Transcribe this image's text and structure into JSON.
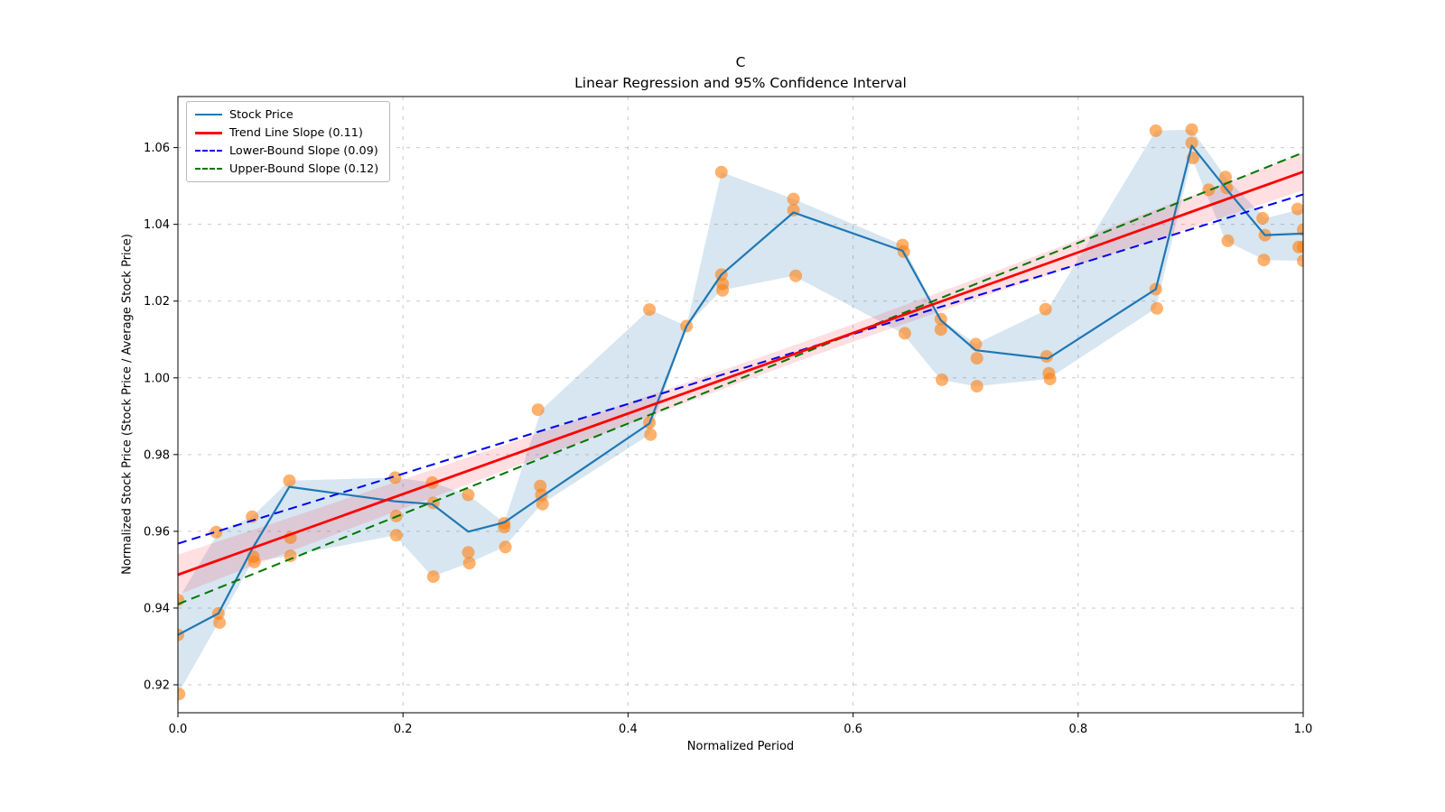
{
  "title": "C",
  "subtitle": "Linear Regression and 95% Confidence Interval",
  "xlabel": "Normalized Period",
  "ylabel": "Normalized Stock Price (Stock Price / Average Stock Price)",
  "legend": [
    {
      "label": "Stock Price",
      "color": "#1f77b4",
      "style": "solid",
      "width": 2
    },
    {
      "label": "Trend Line Slope (0.11)",
      "color": "#ff0000",
      "style": "solid",
      "width": 3
    },
    {
      "label": "Lower-Bound Slope (0.09)",
      "color": "#0000ee",
      "style": "dashed",
      "width": 2
    },
    {
      "label": "Upper-Bound Slope (0.12)",
      "color": "#007700",
      "style": "dashed",
      "width": 2
    }
  ],
  "chart_data": {
    "type": "line",
    "title": "C",
    "subtitle": "Linear Regression and 95% Confidence Interval",
    "xlabel": "Normalized Period",
    "ylabel": "Normalized Stock Price (Stock Price / Average Stock Price)",
    "xlim": [
      0,
      1
    ],
    "ylim": [
      0.9127,
      1.0733
    ],
    "x_ticks": [
      "0.0",
      "0.2",
      "0.4",
      "0.6",
      "0.8",
      "1.0"
    ],
    "x_tick_values": [
      0.0,
      0.2,
      0.4,
      0.6,
      0.8,
      1.0
    ],
    "y_ticks": [
      "0.92",
      "0.94",
      "0.96",
      "0.98",
      "1.00",
      "1.02",
      "1.04",
      "1.06"
    ],
    "y_tick_values": [
      0.92,
      0.94,
      0.96,
      0.98,
      1.0,
      1.02,
      1.04,
      1.06
    ],
    "grid": true,
    "legend_position": "upper left",
    "colors": {
      "stock_line": "#1f77b4",
      "stock_band": "rgba(31,119,180,0.18)",
      "scatter": "#ff7f0e",
      "scatter_alpha": 0.6,
      "trend": "#ff0000",
      "trend_band": "rgba(255,10,30,0.13)",
      "lower_bound": "#0000ee",
      "upper_bound": "#007700",
      "grid_color": "#c9c9c9"
    },
    "stock_price_line": {
      "x": [
        0.0,
        0.036,
        0.066,
        0.099,
        0.193,
        0.226,
        0.258,
        0.29,
        0.323,
        0.419,
        0.452,
        0.483,
        0.547,
        0.644,
        0.678,
        0.709,
        0.773,
        0.869,
        0.901,
        0.931,
        0.966,
        1.0
      ],
      "y": [
        0.933,
        0.9386,
        0.9554,
        0.9716,
        0.9678,
        0.9671,
        0.9599,
        0.9623,
        0.969,
        0.9881,
        1.0135,
        1.0269,
        1.0431,
        1.0331,
        1.015,
        1.0072,
        1.005,
        1.0231,
        1.0605,
        1.0495,
        1.0372,
        1.0376
      ]
    },
    "stock_band": {
      "x": [
        0.0,
        0.036,
        0.066,
        0.099,
        0.193,
        0.226,
        0.258,
        0.29,
        0.323,
        0.419,
        0.452,
        0.483,
        0.547,
        0.644,
        0.678,
        0.709,
        0.773,
        0.869,
        0.901,
        0.931,
        0.966,
        1.0
      ],
      "low": [
        0.9176,
        0.9362,
        0.952,
        0.9536,
        0.959,
        0.9482,
        0.9517,
        0.9559,
        0.9671,
        0.9852,
        1.0135,
        1.0228,
        1.0266,
        1.0116,
        0.9995,
        0.9978,
        0.9997,
        1.0181,
        1.0573,
        1.0357,
        1.0307,
        1.0305
      ],
      "high": [
        0.9421,
        0.9598,
        0.9638,
        0.9732,
        0.974,
        0.9727,
        0.9695,
        0.9623,
        0.9917,
        1.0178,
        1.0135,
        1.0536,
        1.0466,
        1.0346,
        1.0153,
        1.0088,
        1.0179,
        1.0644,
        1.0647,
        1.0523,
        1.0416,
        1.044
      ]
    },
    "scatter": [
      [
        0.0,
        0.9421
      ],
      [
        0.0,
        0.933
      ],
      [
        0.001,
        0.9176
      ],
      [
        0.034,
        0.9598
      ],
      [
        0.036,
        0.9386
      ],
      [
        0.037,
        0.9362
      ],
      [
        0.066,
        0.9638
      ],
      [
        0.067,
        0.9534
      ],
      [
        0.068,
        0.952
      ],
      [
        0.099,
        0.9732
      ],
      [
        0.1,
        0.9583
      ],
      [
        0.1,
        0.9536
      ],
      [
        0.193,
        0.974
      ],
      [
        0.194,
        0.964
      ],
      [
        0.194,
        0.959
      ],
      [
        0.226,
        0.9727
      ],
      [
        0.227,
        0.9674
      ],
      [
        0.227,
        0.9482
      ],
      [
        0.258,
        0.9695
      ],
      [
        0.258,
        0.9545
      ],
      [
        0.259,
        0.9517
      ],
      [
        0.29,
        0.9621
      ],
      [
        0.29,
        0.9611
      ],
      [
        0.291,
        0.9559
      ],
      [
        0.32,
        0.9917
      ],
      [
        0.322,
        0.9718
      ],
      [
        0.323,
        0.9695
      ],
      [
        0.324,
        0.9671
      ],
      [
        0.419,
        1.0178
      ],
      [
        0.419,
        0.9883
      ],
      [
        0.42,
        0.9852
      ],
      [
        0.452,
        1.0135
      ],
      [
        0.483,
        1.0536
      ],
      [
        0.483,
        1.0269
      ],
      [
        0.484,
        1.0245
      ],
      [
        0.484,
        1.0228
      ],
      [
        0.547,
        1.0466
      ],
      [
        0.547,
        1.0437
      ],
      [
        0.549,
        1.0266
      ],
      [
        0.644,
        1.0346
      ],
      [
        0.645,
        1.0329
      ],
      [
        0.646,
        1.0116
      ],
      [
        0.678,
        1.0153
      ],
      [
        0.678,
        1.0126
      ],
      [
        0.679,
        0.9995
      ],
      [
        0.709,
        1.0088
      ],
      [
        0.71,
        1.0051
      ],
      [
        0.71,
        0.9978
      ],
      [
        0.771,
        1.0179
      ],
      [
        0.772,
        1.0056
      ],
      [
        0.774,
        1.0012
      ],
      [
        0.775,
        0.9997
      ],
      [
        0.869,
        1.0644
      ],
      [
        0.869,
        1.0231
      ],
      [
        0.87,
        1.0181
      ],
      [
        0.901,
        1.0647
      ],
      [
        0.901,
        1.0612
      ],
      [
        0.902,
        1.0573
      ],
      [
        0.916,
        1.049
      ],
      [
        0.931,
        1.0523
      ],
      [
        0.932,
        1.0495
      ],
      [
        0.933,
        1.0357
      ],
      [
        0.964,
        1.0416
      ],
      [
        0.966,
        1.0372
      ],
      [
        0.965,
        1.0307
      ],
      [
        0.995,
        1.044
      ],
      [
        0.996,
        1.0341
      ],
      [
        1.0,
        1.0386
      ],
      [
        1.0,
        1.0341
      ],
      [
        1.0,
        1.0305
      ]
    ],
    "trend_line": {
      "slope": 0.11,
      "x": [
        0,
        1
      ],
      "y": [
        0.9487,
        1.0537
      ]
    },
    "lower_bound": {
      "slope": 0.09,
      "x": [
        0,
        1
      ],
      "y": [
        0.9568,
        1.0478
      ]
    },
    "upper_bound": {
      "slope": 0.12,
      "x": [
        0,
        1
      ],
      "y": [
        0.941,
        1.0587
      ]
    },
    "ci_band": {
      "x": [
        0.0,
        0.1,
        0.2,
        0.3,
        0.4,
        0.5,
        0.55,
        0.6,
        0.7,
        0.8,
        0.9,
        1.0
      ],
      "low": [
        0.9435,
        0.9548,
        0.9659,
        0.9769,
        0.9879,
        0.9988,
        1.0042,
        1.0094,
        1.0196,
        1.0294,
        1.039,
        1.0489
      ],
      "high": [
        0.9539,
        0.9636,
        0.9735,
        0.9835,
        0.9935,
        1.0036,
        1.0087,
        1.014,
        1.0248,
        1.036,
        1.0474,
        1.0585
      ]
    }
  }
}
